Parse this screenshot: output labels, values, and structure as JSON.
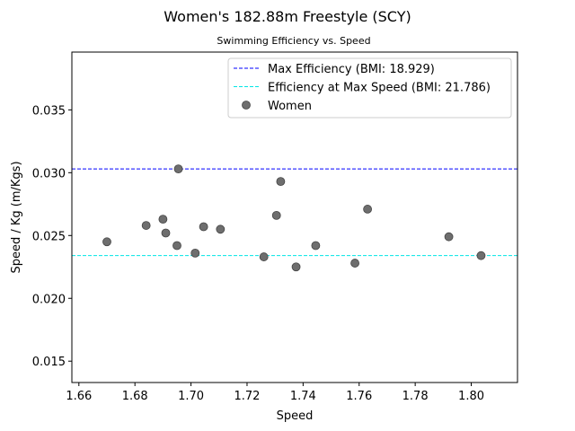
{
  "chart_data": {
    "type": "scatter",
    "title": "Women's 182.88m Freestyle (SCY)",
    "subtitle": "Swimming Efficiency vs. Speed",
    "xlabel": "Speed",
    "ylabel": "Speed / Kg (m/Kgs)",
    "xlim": [
      1.6575,
      1.8165
    ],
    "ylim": [
      0.0133,
      0.0396
    ],
    "x_ticks": [
      1.66,
      1.68,
      1.7,
      1.72,
      1.74,
      1.76,
      1.78,
      1.8
    ],
    "x_tick_labels": [
      "1.66",
      "1.68",
      "1.70",
      "1.72",
      "1.74",
      "1.76",
      "1.78",
      "1.80"
    ],
    "y_ticks": [
      0.015,
      0.02,
      0.025,
      0.03,
      0.035
    ],
    "y_tick_labels": [
      "0.015",
      "0.020",
      "0.025",
      "0.030",
      "0.035"
    ],
    "grid": false,
    "legend_position": "top-right",
    "reference_lines": [
      {
        "name": "Max Efficiency (BMI: 18.929)",
        "y": 0.0303,
        "color": "#0000ff",
        "style": "dashed"
      },
      {
        "name": "Efficiency at Max Speed (BMI: 21.786)",
        "y": 0.0234,
        "color": "#00e5e5",
        "style": "dashed"
      }
    ],
    "series": [
      {
        "name": "Women",
        "color": "#6e6e6e",
        "points": [
          {
            "x": 1.67,
            "y": 0.0245
          },
          {
            "x": 1.684,
            "y": 0.0258
          },
          {
            "x": 1.69,
            "y": 0.0263
          },
          {
            "x": 1.691,
            "y": 0.0252
          },
          {
            "x": 1.695,
            "y": 0.0242
          },
          {
            "x": 1.6955,
            "y": 0.0303
          },
          {
            "x": 1.7015,
            "y": 0.0236
          },
          {
            "x": 1.7045,
            "y": 0.0257
          },
          {
            "x": 1.7105,
            "y": 0.0255
          },
          {
            "x": 1.726,
            "y": 0.0233
          },
          {
            "x": 1.7305,
            "y": 0.0266
          },
          {
            "x": 1.732,
            "y": 0.0293
          },
          {
            "x": 1.7375,
            "y": 0.0225
          },
          {
            "x": 1.7445,
            "y": 0.0242
          },
          {
            "x": 1.7585,
            "y": 0.0228
          },
          {
            "x": 1.763,
            "y": 0.0271
          },
          {
            "x": 1.792,
            "y": 0.0249
          },
          {
            "x": 1.8035,
            "y": 0.0234
          }
        ]
      }
    ]
  }
}
